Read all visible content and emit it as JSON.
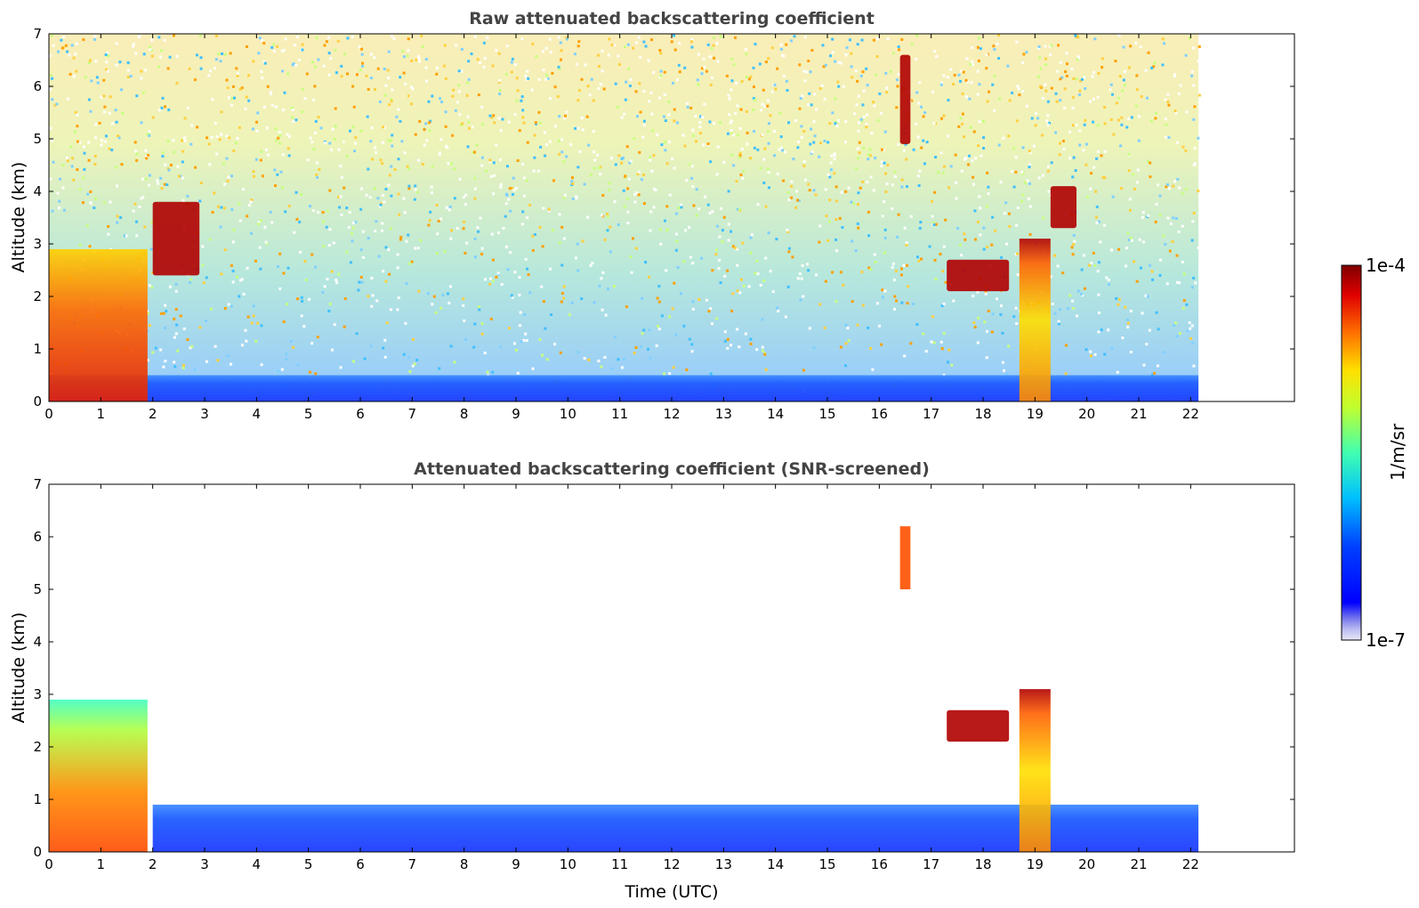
{
  "chart_data": [
    {
      "type": "heatmap",
      "title": "Raw attenuated backscattering coefficient",
      "xlabel": "",
      "ylabel": "Altitude (km)",
      "xlim": [
        0,
        24
      ],
      "ylim": [
        0,
        7
      ],
      "xticks": [
        "0",
        "1",
        "2",
        "3",
        "4",
        "5",
        "6",
        "7",
        "8",
        "9",
        "10",
        "11",
        "12",
        "13",
        "14",
        "15",
        "16",
        "17",
        "18",
        "19",
        "20",
        "21",
        "22"
      ],
      "yticks": [
        "0",
        "1",
        "2",
        "3",
        "4",
        "5",
        "6",
        "7"
      ],
      "data_extent_hours": [
        0,
        22.15
      ],
      "features": [
        {
          "label": "boundary layer",
          "x_range": [
            0,
            22.15
          ],
          "altitude_km": [
            0,
            0.5
          ],
          "level": "low"
        },
        {
          "label": "aerosol/cloud column",
          "x_range": [
            0,
            1.9
          ],
          "altitude_km": [
            0,
            2.9
          ],
          "level": "high"
        },
        {
          "label": "cloud layer",
          "x_range": [
            2.0,
            2.9
          ],
          "altitude_km": [
            2.4,
            3.8
          ],
          "level": "very high"
        },
        {
          "label": "cloud layer",
          "x_range": [
            17.3,
            18.5
          ],
          "altitude_km": [
            2.1,
            2.7
          ],
          "level": "very high"
        },
        {
          "label": "rising plume",
          "x_range": [
            18.7,
            19.3
          ],
          "altitude_km": [
            0,
            3.1
          ],
          "level": "high"
        },
        {
          "label": "high cloud",
          "x_range": [
            16.4,
            16.6
          ],
          "altitude_km": [
            4.9,
            6.6
          ],
          "level": "very high"
        },
        {
          "label": "cloud layer",
          "x_range": [
            19.3,
            19.8
          ],
          "altitude_km": [
            3.3,
            4.1
          ],
          "level": "very high"
        }
      ]
    },
    {
      "type": "heatmap",
      "title": "Attenuated backscattering coefficient (SNR-screened)",
      "xlabel": "Time (UTC)",
      "ylabel": "Altitude (km)",
      "xlim": [
        0,
        24
      ],
      "ylim": [
        0,
        7
      ],
      "xticks": [
        "0",
        "1",
        "2",
        "3",
        "4",
        "5",
        "6",
        "7",
        "8",
        "9",
        "10",
        "11",
        "12",
        "13",
        "14",
        "15",
        "16",
        "17",
        "18",
        "19",
        "20",
        "21",
        "22"
      ],
      "yticks": [
        "0",
        "1",
        "2",
        "3",
        "4",
        "5",
        "6",
        "7"
      ],
      "data_extent_hours": [
        0,
        22.15
      ],
      "features": [
        {
          "label": "boundary layer",
          "x_range": [
            2.0,
            22.15
          ],
          "altitude_km": [
            0,
            0.9
          ],
          "level": "low"
        },
        {
          "label": "aerosol/cloud column",
          "x_range": [
            0,
            1.9
          ],
          "altitude_km": [
            0,
            2.9
          ],
          "level": "high"
        },
        {
          "label": "cloud layer",
          "x_range": [
            17.3,
            18.5
          ],
          "altitude_km": [
            2.1,
            2.7
          ],
          "level": "very high"
        },
        {
          "label": "rising plume",
          "x_range": [
            18.7,
            19.3
          ],
          "altitude_km": [
            0,
            3.1
          ],
          "level": "high"
        },
        {
          "label": "high cloud",
          "x_range": [
            16.4,
            16.6
          ],
          "altitude_km": [
            5.0,
            6.2
          ],
          "level": "high"
        }
      ]
    }
  ],
  "colorbar": {
    "label": "1/m/sr",
    "min_label": "1e-7",
    "max_label": "1e-4",
    "min": 1e-07,
    "max": 0.0001,
    "scale": "log",
    "colormap": "jet"
  }
}
